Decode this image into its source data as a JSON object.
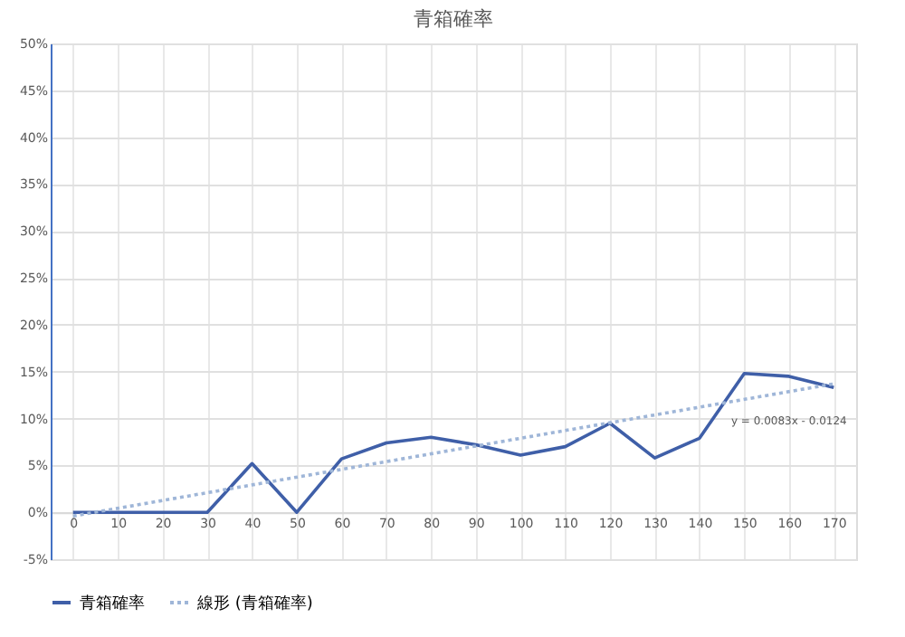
{
  "chart_data": {
    "type": "line",
    "title": "青箱確率",
    "categories": [
      "0",
      "10",
      "20",
      "30",
      "40",
      "50",
      "60",
      "70",
      "80",
      "90",
      "100",
      "110",
      "120",
      "130",
      "140",
      "150",
      "160",
      "170"
    ],
    "series": [
      {
        "name": "青箱確率",
        "color": "#3f5fa8",
        "line_style": "solid",
        "values": [
          0,
          0,
          0,
          0,
          5.2,
          0,
          5.7,
          7.4,
          8.0,
          7.2,
          6.1,
          7.0,
          9.5,
          5.8,
          7.9,
          14.8,
          14.5,
          13.3
        ]
      },
      {
        "name": "線形 (青箱確率)",
        "color": "#9fb6d8",
        "line_style": "dotted",
        "x": [
          "0",
          "170"
        ],
        "values": [
          -0.4,
          13.7
        ]
      }
    ],
    "ylim": [
      -5,
      50
    ],
    "yticks": [
      {
        "value": -5,
        "label": "-5%"
      },
      {
        "value": 0,
        "label": "0%"
      },
      {
        "value": 5,
        "label": "5%"
      },
      {
        "value": 10,
        "label": "10%"
      },
      {
        "value": 15,
        "label": "15%"
      },
      {
        "value": 20,
        "label": "20%"
      },
      {
        "value": 25,
        "label": "25%"
      },
      {
        "value": 30,
        "label": "30%"
      },
      {
        "value": 35,
        "label": "35%"
      },
      {
        "value": 40,
        "label": "40%"
      },
      {
        "value": 45,
        "label": "45%"
      },
      {
        "value": 50,
        "label": "50%"
      }
    ],
    "annotations": [
      {
        "text": "y = 0.0083x - 0.0124",
        "x": "160",
        "y": 12.5
      }
    ],
    "grid": true,
    "legend": "bottom",
    "marker": "none"
  }
}
